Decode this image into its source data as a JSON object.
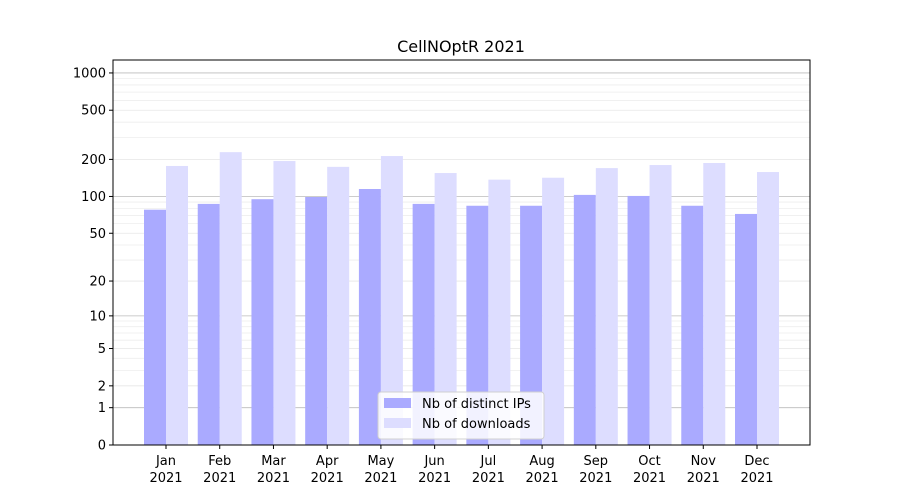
{
  "chart_data": {
    "type": "bar",
    "title": "CellNOptR 2021",
    "xlabel": "",
    "ylabel": "",
    "yscale": "log(1+y)",
    "ylim": [
      0,
      1300
    ],
    "yticks": [
      0,
      1,
      2,
      5,
      10,
      20,
      50,
      100,
      200,
      500,
      1000
    ],
    "ytick_labels": [
      "0",
      "1",
      "2",
      "5",
      "10",
      "20",
      "50",
      "100",
      "200",
      "500",
      "1000"
    ],
    "grid": true,
    "legend_position": "bottom-center",
    "categories": [
      "Jan\n2021",
      "Feb\n2021",
      "Mar\n2021",
      "Apr\n2021",
      "May\n2021",
      "Jun\n2021",
      "Jul\n2021",
      "Aug\n2021",
      "Sep\n2021",
      "Oct\n2021",
      "Nov\n2021",
      "Dec\n2021"
    ],
    "category_months": [
      "Jan",
      "Feb",
      "Mar",
      "Apr",
      "May",
      "Jun",
      "Jul",
      "Aug",
      "Sep",
      "Oct",
      "Nov",
      "Dec"
    ],
    "category_year": "2021",
    "series": [
      {
        "name": "Nb of distinct IPs",
        "color": "#aaaaff",
        "values": [
          78,
          87,
          95,
          99,
          115,
          87,
          84,
          84,
          103,
          101,
          84,
          72
        ]
      },
      {
        "name": "Nb of downloads",
        "color": "#ddddff",
        "values": [
          177,
          229,
          194,
          174,
          213,
          155,
          137,
          142,
          170,
          180,
          187,
          158
        ]
      }
    ]
  }
}
